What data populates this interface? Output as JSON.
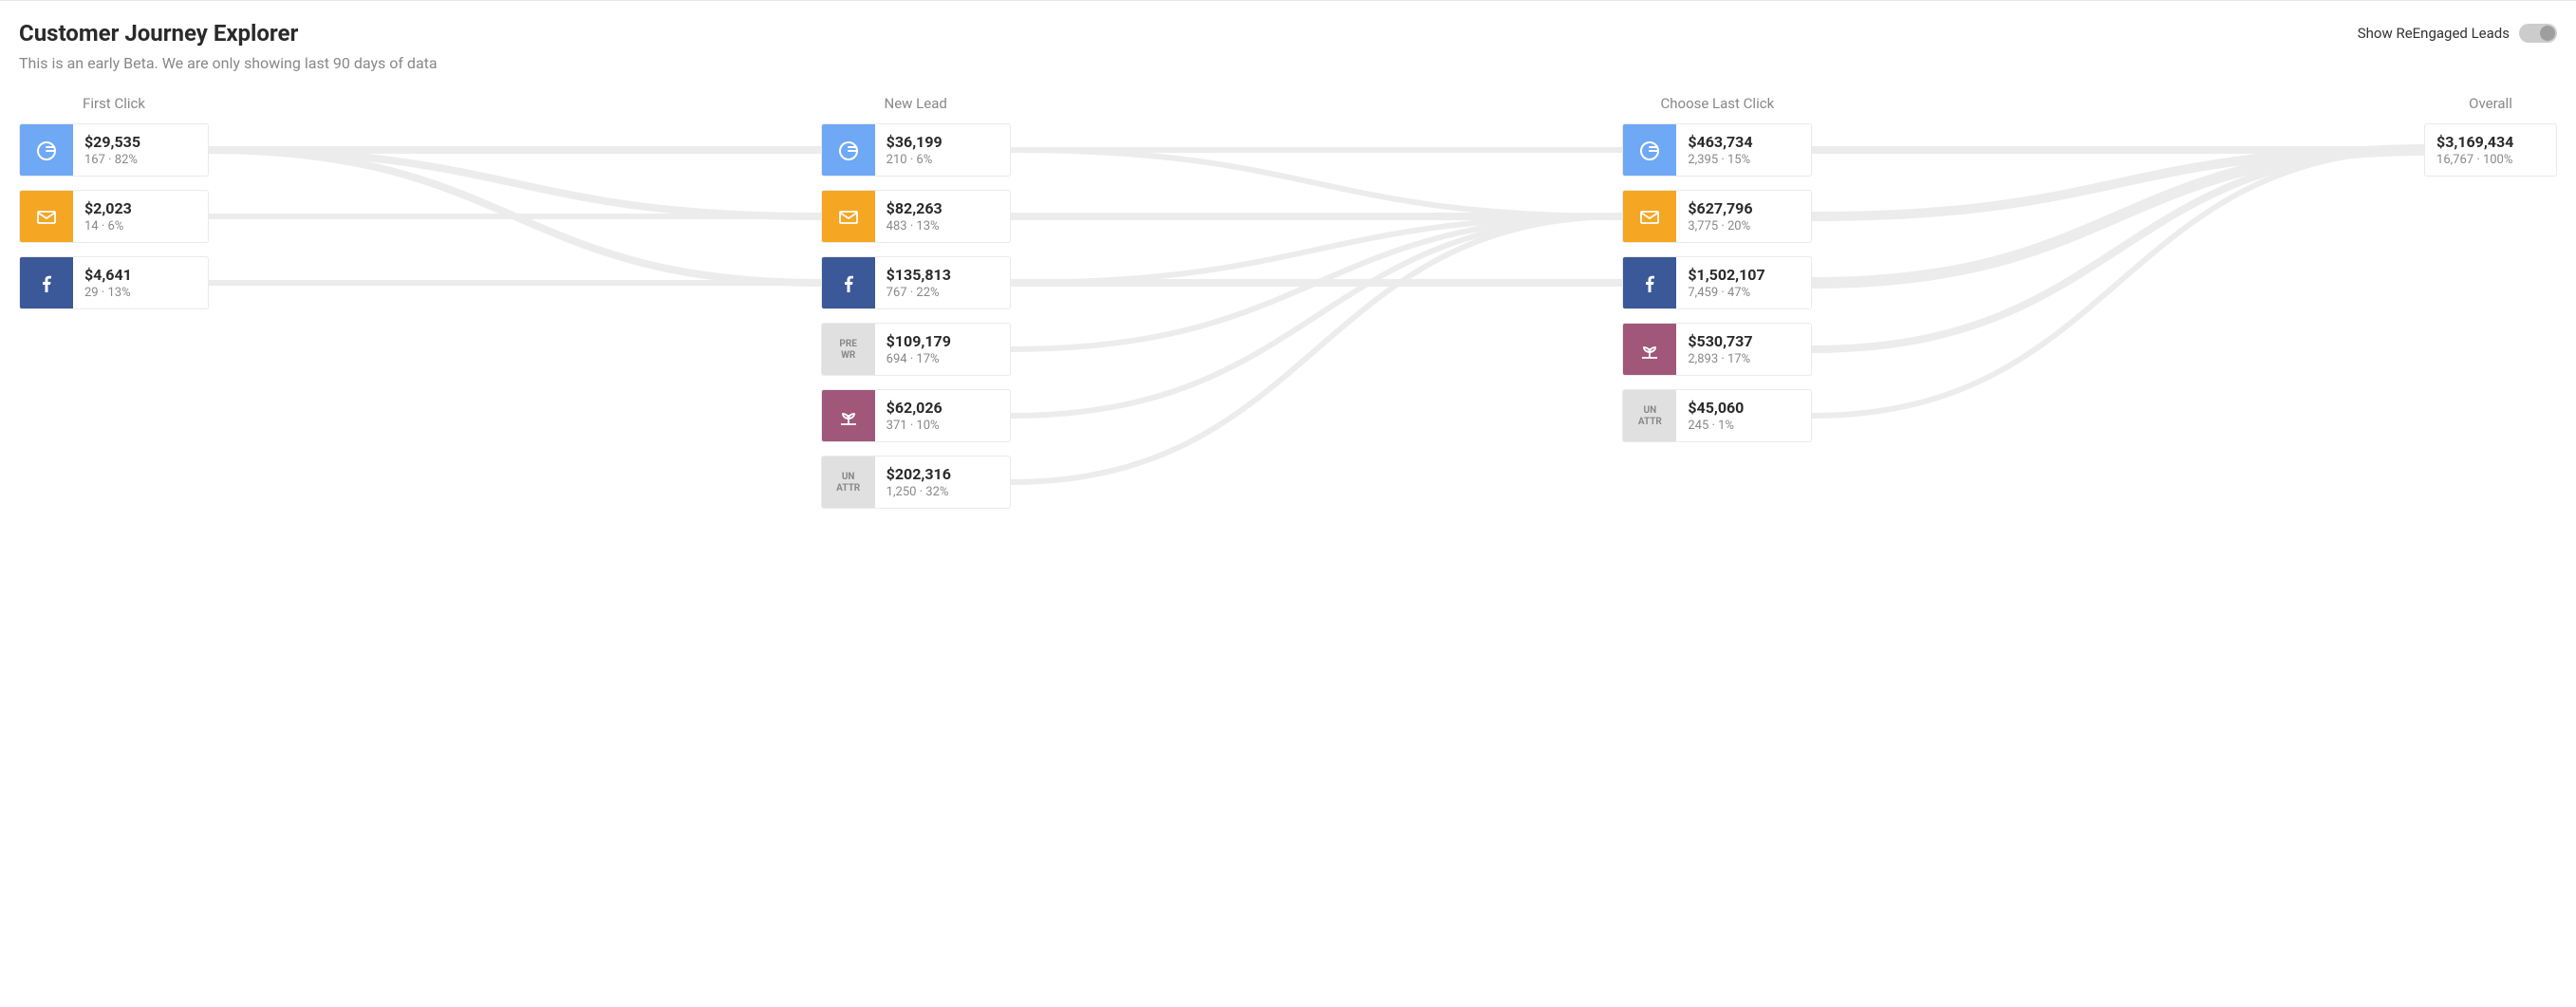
{
  "title": "Customer Journey Explorer",
  "subtitle": "This is an early Beta. We are only showing last 90 days of data",
  "toggle": {
    "label": "Show ReEngaged Leads",
    "on": false
  },
  "colors": {
    "google": "#6fa8f5",
    "email": "#f5a623",
    "facebook": "#3b5998",
    "prewr_bg": "#e0e0e0",
    "prewr_text": "#888888",
    "organic": "#a0577a",
    "unattr_bg": "#e0e0e0",
    "unattr_text": "#888888",
    "flow": "#ececec",
    "border": "#eaeaea"
  },
  "stages": [
    {
      "id": "first",
      "label": "First Click"
    },
    {
      "id": "newlead",
      "label": "New Lead"
    },
    {
      "id": "last",
      "label": "Choose Last Click"
    },
    {
      "id": "overall",
      "label": "Overall"
    }
  ],
  "columns": {
    "first": [
      {
        "source": "google",
        "amount": "$29,535",
        "count": "167",
        "pct": "82%"
      },
      {
        "source": "email",
        "amount": "$2,023",
        "count": "14",
        "pct": "6%"
      },
      {
        "source": "facebook",
        "amount": "$4,641",
        "count": "29",
        "pct": "13%"
      }
    ],
    "newlead": [
      {
        "source": "google",
        "amount": "$36,199",
        "count": "210",
        "pct": "6%"
      },
      {
        "source": "email",
        "amount": "$82,263",
        "count": "483",
        "pct": "13%"
      },
      {
        "source": "facebook",
        "amount": "$135,813",
        "count": "767",
        "pct": "22%"
      },
      {
        "source": "prewr",
        "amount": "$109,179",
        "count": "694",
        "pct": "17%"
      },
      {
        "source": "organic",
        "amount": "$62,026",
        "count": "371",
        "pct": "10%"
      },
      {
        "source": "unattr",
        "amount": "$202,316",
        "count": "1,250",
        "pct": "32%"
      }
    ],
    "last": [
      {
        "source": "google",
        "amount": "$463,734",
        "count": "2,395",
        "pct": "15%"
      },
      {
        "source": "email",
        "amount": "$627,796",
        "count": "3,775",
        "pct": "20%"
      },
      {
        "source": "facebook",
        "amount": "$1,502,107",
        "count": "7,459",
        "pct": "47%"
      },
      {
        "source": "organic",
        "amount": "$530,737",
        "count": "2,893",
        "pct": "17%"
      },
      {
        "source": "unattr",
        "amount": "$45,060",
        "count": "245",
        "pct": "1%"
      }
    ],
    "overall": {
      "amount": "$3,169,434",
      "count": "16,767",
      "pct": "100%"
    }
  },
  "icon_labels": {
    "prewr": "PRE WR",
    "unattr": "UN ATTR"
  },
  "flows": [
    {
      "from": "first.0",
      "to": "newlead.0",
      "w": 8
    },
    {
      "from": "first.0",
      "to": "newlead.1",
      "w": 8
    },
    {
      "from": "first.0",
      "to": "newlead.2",
      "w": 8
    },
    {
      "from": "first.1",
      "to": "newlead.1",
      "w": 6
    },
    {
      "from": "first.2",
      "to": "newlead.2",
      "w": 6
    },
    {
      "from": "newlead.0",
      "to": "last.0",
      "w": 6
    },
    {
      "from": "newlead.0",
      "to": "last.1",
      "w": 6
    },
    {
      "from": "newlead.1",
      "to": "last.1",
      "w": 8
    },
    {
      "from": "newlead.2",
      "to": "last.1",
      "w": 6
    },
    {
      "from": "newlead.2",
      "to": "last.2",
      "w": 8
    },
    {
      "from": "newlead.3",
      "to": "last.1",
      "w": 6
    },
    {
      "from": "newlead.4",
      "to": "last.1",
      "w": 6
    },
    {
      "from": "newlead.5",
      "to": "last.1",
      "w": 6
    },
    {
      "from": "last.0",
      "to": "overall",
      "w": 8
    },
    {
      "from": "last.1",
      "to": "overall",
      "w": 10
    },
    {
      "from": "last.2",
      "to": "overall",
      "w": 12
    },
    {
      "from": "last.3",
      "to": "overall",
      "w": 8
    },
    {
      "from": "last.4",
      "to": "overall",
      "w": 6
    }
  ]
}
